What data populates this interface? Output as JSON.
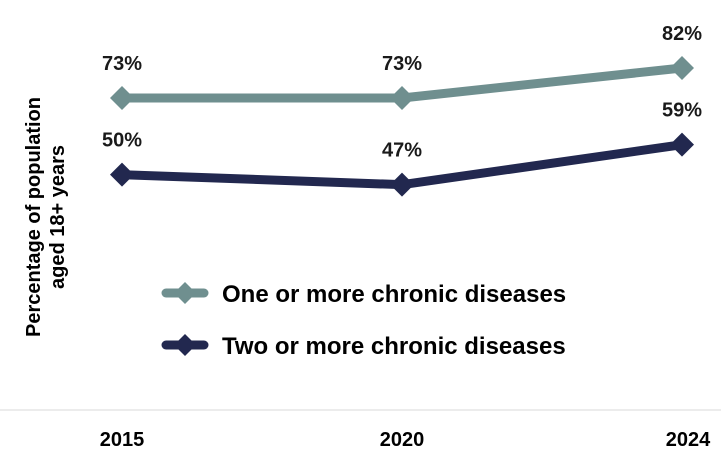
{
  "chart_data": {
    "type": "line",
    "title": "",
    "ylabel": [
      "Percentage of population",
      "aged 18+ years"
    ],
    "xlabel": "",
    "categories": [
      "2015",
      "2020",
      "2024"
    ],
    "ylim": [
      40,
      85
    ],
    "grid": false,
    "legend_position": "center",
    "series": [
      {
        "name": "One or more chronic diseases",
        "values": [
          73,
          73,
          82
        ],
        "labels": [
          "73%",
          "73%",
          "82%"
        ],
        "color": "#6f8f8f",
        "marker": "diamond"
      },
      {
        "name": "Two or more chronic diseases",
        "values": [
          50,
          47,
          59
        ],
        "labels": [
          "50%",
          "47%",
          "59%"
        ],
        "color": "#22284f",
        "marker": "diamond"
      }
    ]
  }
}
